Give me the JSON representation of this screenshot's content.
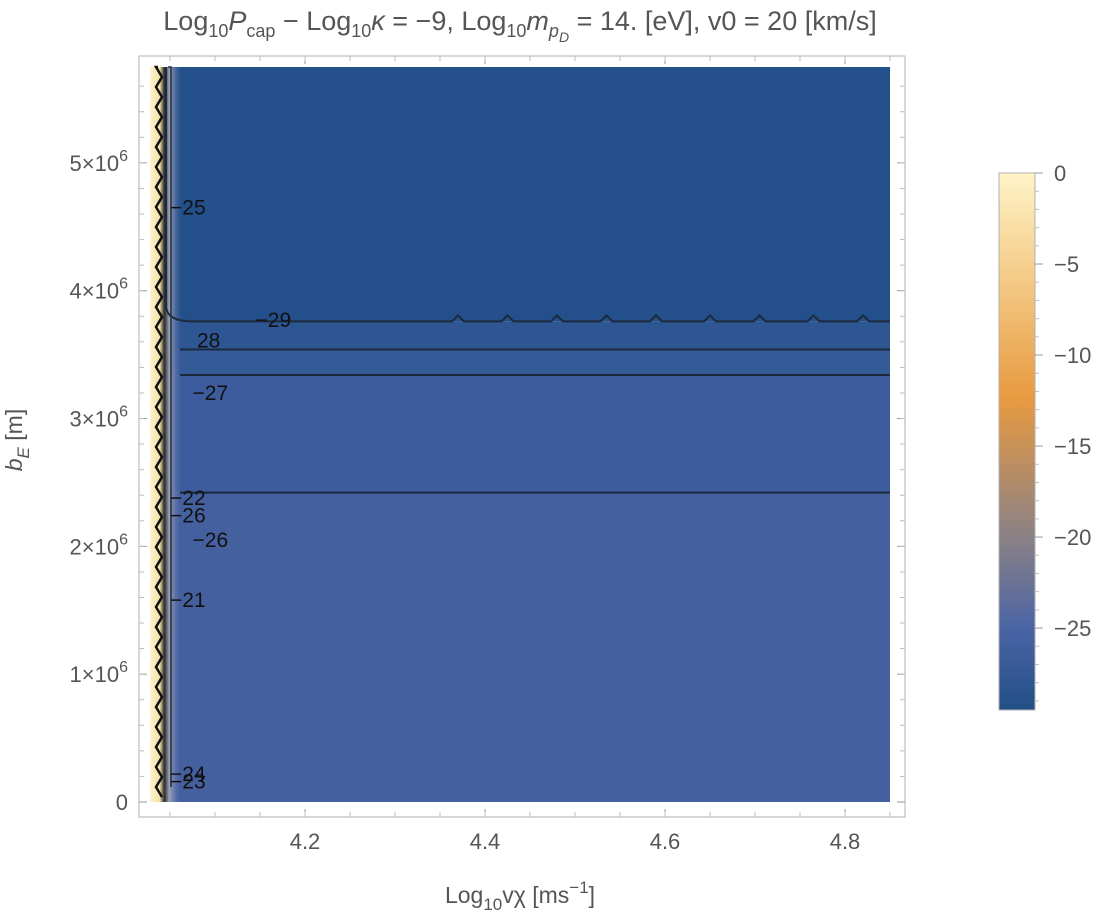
{
  "chart_data": {
    "type": "heatmap",
    "title": {
      "prefix": "Log",
      "sub1": "10",
      "p": "P",
      "cap": "cap",
      "mid": " − Log",
      "sub2": "10",
      "kappa": "κ",
      "mid2": " = −9, Log",
      "sub3": "10",
      "m": "m",
      "msub": "p",
      "msubsub": "D",
      "suffix": " = 14. [eV], v0 = 20 [km/s]"
    },
    "xlabel": {
      "pre": "Log",
      "sub": "10",
      "main": "vχ [ms",
      "sup": "−1",
      "post": "]"
    },
    "ylabel": {
      "main": "b",
      "sub": "E",
      "post": " [m]"
    },
    "xlim": [
      4.03,
      4.85
    ],
    "ylim": [
      0,
      5750000
    ],
    "x_ticks": [
      4.2,
      4.4,
      4.6,
      4.8
    ],
    "x_tick_labels": [
      "4.2",
      "4.4",
      "4.6",
      "4.8"
    ],
    "y_ticks": [
      0,
      1000000,
      2000000,
      3000000,
      4000000,
      5000000
    ],
    "y_tick_labels": [
      {
        "pre": "0",
        "exp": ""
      },
      {
        "pre": "1×10",
        "exp": "6"
      },
      {
        "pre": "2×10",
        "exp": "6"
      },
      {
        "pre": "3×10",
        "exp": "6"
      },
      {
        "pre": "4×10",
        "exp": "6"
      },
      {
        "pre": "5×10",
        "exp": "6"
      }
    ],
    "colorbar": {
      "range": [
        -29.5,
        0
      ],
      "ticks": [
        0,
        -5,
        -10,
        -15,
        -20,
        -25
      ],
      "tick_labels": [
        "0",
        "−5",
        "−10",
        "−15",
        "−20",
        "−25"
      ],
      "colors": [
        "#fff4c8",
        "#f5c978",
        "#e89a40",
        "#8a8186",
        "#4a64a5",
        "#224f86"
      ]
    },
    "regions": [
      {
        "y_from": 3760000,
        "y_to": 5750000,
        "value": -29.5
      },
      {
        "y_from": 3540000,
        "y_to": 3760000,
        "value": -29
      },
      {
        "y_from": 3340000,
        "y_to": 3540000,
        "value": -28
      },
      {
        "y_from": 2420000,
        "y_to": 3340000,
        "value": -27
      },
      {
        "y_from": 0,
        "y_to": 2420000,
        "value": -26
      }
    ],
    "contour_levels_y": [
      3760000,
      3540000,
      3340000,
      2420000
    ],
    "contour_labels": [
      {
        "text": "−29",
        "x": 4.145,
        "y": 3770000
      },
      {
        "text": "28",
        "x": 4.08,
        "y": 3610000
      },
      {
        "text": "−27",
        "x": 4.075,
        "y": 3200000
      },
      {
        "text": "−25",
        "x": 4.05,
        "y": 4650000
      },
      {
        "text": "−22",
        "x": 4.05,
        "y": 2380000
      },
      {
        "text": "−26",
        "x": 4.05,
        "y": 2240000
      },
      {
        "text": "−26",
        "x": 4.075,
        "y": 2050000
      },
      {
        "text": "−21",
        "x": 4.05,
        "y": 1580000
      },
      {
        "text": "−24",
        "x": 4.05,
        "y": 220000
      },
      {
        "text": "−23",
        "x": 4.05,
        "y": 160000
      }
    ]
  }
}
